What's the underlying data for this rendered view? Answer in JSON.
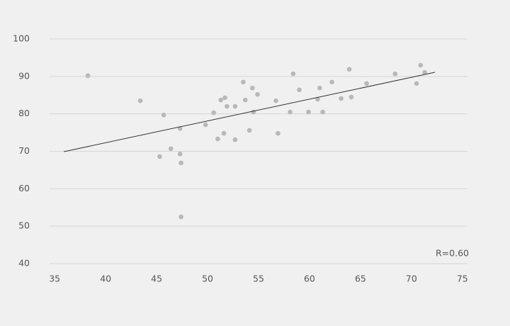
{
  "chart_data": {
    "type": "scatter",
    "annotation": "R=0.60",
    "xlim": [
      34.5,
      75.5
    ],
    "xticks": [
      35,
      40,
      45,
      50,
      55,
      60,
      65,
      70,
      75
    ],
    "ylim": [
      40,
      100
    ],
    "yticks": [
      40,
      50,
      60,
      70,
      80,
      90,
      100
    ],
    "grid": true,
    "point_color": "#b8b8b8",
    "points": {
      "x": [
        38.26,
        43.4,
        45.7,
        45.3,
        46.4,
        47.3,
        47.3,
        47.4,
        47.4,
        49.8,
        50.6,
        51.0,
        51.3,
        51.6,
        51.7,
        51.9,
        52.7,
        52.7,
        53.5,
        53.7,
        54.1,
        54.4,
        54.5,
        54.9,
        56.7,
        56.9,
        58.1,
        58.4,
        59.0,
        59.9,
        60.8,
        61.0,
        61.3,
        62.2,
        63.1,
        63.9,
        64.1,
        65.6,
        68.4,
        70.5,
        70.9,
        71.3
      ],
      "y": [
        90.2,
        83.5,
        79.7,
        68.6,
        70.7,
        76.1,
        69.3,
        66.9,
        52.5,
        77.1,
        80.3,
        73.3,
        83.7,
        74.8,
        84.3,
        82.0,
        82.0,
        73.1,
        88.5,
        83.7,
        75.6,
        86.9,
        80.5,
        85.2,
        83.5,
        74.8,
        80.5,
        90.7,
        86.4,
        80.5,
        83.9,
        86.9,
        80.5,
        88.5,
        84.1,
        91.9,
        84.5,
        88.1,
        90.7,
        88.1,
        93.0,
        91.1
      ]
    },
    "trend_line": {
      "color": "#333333",
      "x": [
        35.9,
        72.3
      ],
      "y": [
        69.9,
        91.1
      ]
    }
  }
}
